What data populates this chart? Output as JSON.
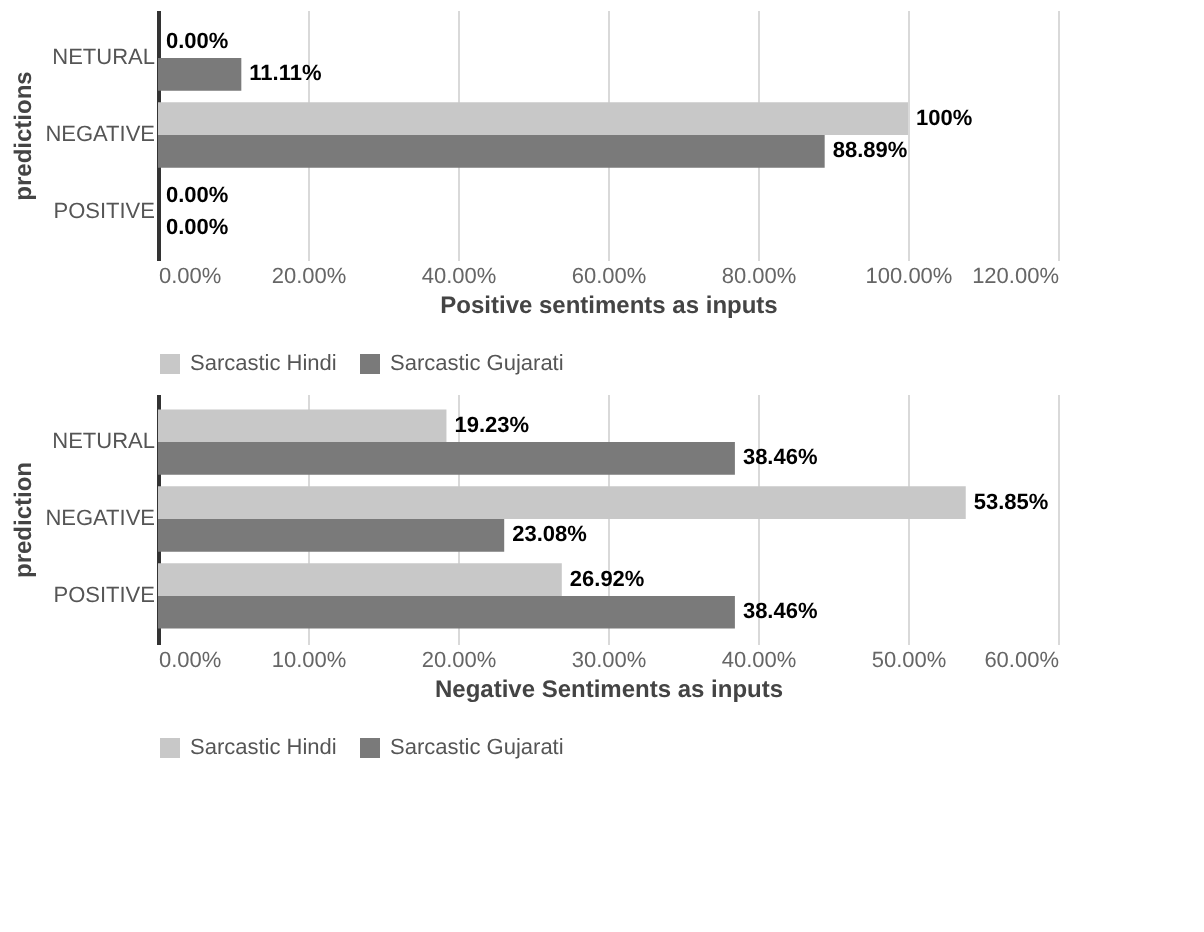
{
  "chart_data": [
    {
      "type": "bar",
      "orientation": "horizontal",
      "ylabel": "predictions",
      "xlabel": "Positive sentiments as inputs",
      "categories": [
        "NETURAL",
        "NEGATIVE",
        "POSITIVE"
      ],
      "series": [
        {
          "name": "Sarcastic Hindi",
          "color": "#c8c8c8",
          "values": [
            0,
            100,
            0
          ],
          "value_labels": [
            "0.00%",
            "100%",
            "0.00%"
          ]
        },
        {
          "name": "Sarcastic Gujarati",
          "color": "#7a7a7a",
          "values": [
            11.11,
            88.89,
            0
          ],
          "value_labels": [
            "11.11%",
            "88.89%",
            "0.00%"
          ]
        }
      ],
      "xlim": [
        0,
        120
      ],
      "xticks": [
        {
          "value": 0,
          "label": "0.00%"
        },
        {
          "value": 20,
          "label": "20.00%"
        },
        {
          "value": 40,
          "label": "40.00%"
        },
        {
          "value": 60,
          "label": "60.00%"
        },
        {
          "value": 80,
          "label": "80.00%"
        },
        {
          "value": 100,
          "label": "100.00%"
        },
        {
          "value": 120,
          "label": "120.00%"
        }
      ],
      "grid": "x",
      "legend": "bottom"
    },
    {
      "type": "bar",
      "orientation": "horizontal",
      "ylabel": "prediction",
      "xlabel": "Negative Sentiments as inputs",
      "categories": [
        "NETURAL",
        "NEGATIVE",
        "POSITIVE"
      ],
      "series": [
        {
          "name": "Sarcastic Hindi",
          "color": "#c8c8c8",
          "values": [
            19.23,
            53.85,
            26.92
          ],
          "value_labels": [
            "19.23%",
            "53.85%",
            "26.92%"
          ]
        },
        {
          "name": "Sarcastic Gujarati",
          "color": "#7a7a7a",
          "values": [
            38.46,
            23.08,
            38.46
          ],
          "value_labels": [
            "38.46%",
            "23.08%",
            "38.46%"
          ]
        }
      ],
      "xlim": [
        0,
        60
      ],
      "xticks": [
        {
          "value": 0,
          "label": "0.00%"
        },
        {
          "value": 10,
          "label": "10.00%"
        },
        {
          "value": 20,
          "label": "20.00%"
        },
        {
          "value": 30,
          "label": "30.00%"
        },
        {
          "value": 40,
          "label": "40.00%"
        },
        {
          "value": 50,
          "label": "50.00%"
        },
        {
          "value": 60,
          "label": "60.00%"
        }
      ],
      "grid": "x",
      "legend": "bottom"
    }
  ]
}
